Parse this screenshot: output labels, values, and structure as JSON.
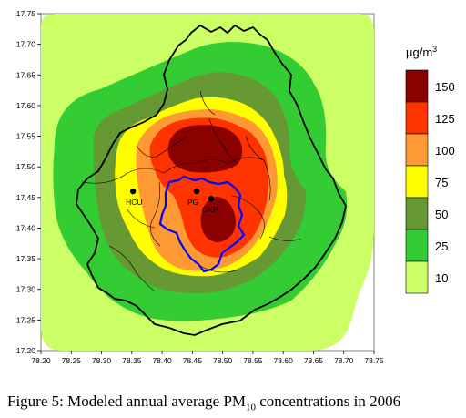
{
  "figure": {
    "x_ticks": [
      "78.20",
      "78.25",
      "78.30",
      "78.35",
      "78.40",
      "78.45",
      "78.50",
      "78.55",
      "78.60",
      "78.65",
      "78.70",
      "78.75"
    ],
    "y_ticks": [
      "17.75",
      "17.70",
      "17.65",
      "17.60",
      "17.55",
      "17.50",
      "17.45",
      "17.40",
      "17.35",
      "17.30",
      "17.25",
      "17.20"
    ],
    "x_range": [
      78.2,
      78.75
    ],
    "y_range": [
      17.2,
      17.75
    ]
  },
  "legend": {
    "unit_prefix": "µg/m",
    "unit_superscript": "3",
    "levels": [
      "150",
      "125",
      "100",
      "75",
      "50",
      "25",
      "10"
    ],
    "colors": [
      "#8b0000",
      "#ff3300",
      "#ff9933",
      "#ffff00",
      "#669933",
      "#33cc33",
      "#ccff66"
    ]
  },
  "sites": [
    {
      "label": "HCU",
      "lon": 78.352,
      "lat": 17.46
    },
    {
      "label": "PG",
      "lon": 78.457,
      "lat": 17.46
    },
    {
      "label": "CKP",
      "lon": 78.481,
      "lat": 17.448
    }
  ],
  "caption": {
    "prefix": "Figure 5: Modeled annual average PM",
    "subscript": "10",
    "suffix": " concentrations in 2006"
  },
  "colors": {
    "zone_10": "#ccff66",
    "zone_25": "#33cc33",
    "zone_50": "#669933",
    "zone_75": "#ffff00",
    "zone_100": "#ff9933",
    "zone_125": "#ff3300",
    "zone_150": "#8b0000",
    "city_boundary": "#0000ff",
    "district_boundary": "#000000"
  }
}
